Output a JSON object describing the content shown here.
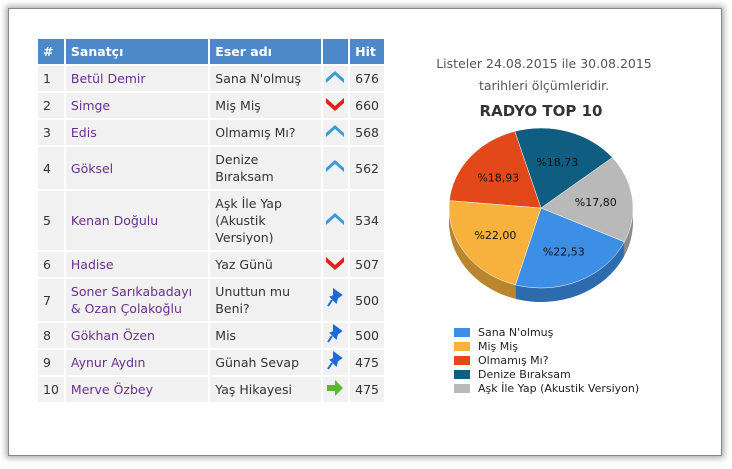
{
  "table": {
    "header": [
      "#",
      "Sanatçı",
      "Eser adı",
      "Hit"
    ],
    "rows": [
      [
        "1",
        "Betül Demir",
        "Sana N'olmuş",
        "676"
      ],
      [
        "2",
        "Simge",
        "Miş Miş",
        "660"
      ],
      [
        "3",
        "Edis",
        "Olmamış Mı?",
        "568"
      ],
      [
        "4",
        "Göksel",
        "Denize Bıraksam",
        "562"
      ],
      [
        "5",
        "Kenan Doğulu",
        "Aşk İle Yap (Akustik Versiyon)",
        "534"
      ],
      [
        "6",
        "Hadise",
        "Yaz Günü",
        "507"
      ],
      [
        "7",
        "Soner Sarıkabadayı & Ozan Çolakoğlu",
        "Unuttun mu Beni?",
        "500"
      ],
      [
        "8",
        "Gökhan Özen",
        "Mis",
        "500"
      ],
      [
        "9",
        "Aynur Aydın",
        "Günah Sevap",
        "475"
      ],
      [
        "10",
        "Merve Özbey",
        "Yaş Hikayesi",
        "475"
      ]
    ]
  },
  "note": "Listeler 24.08.2015 ile 30.08.2015 tarihleri ölçümleridir.",
  "chart_data": {
    "type": "pie",
    "title": "RADYO TOP 10",
    "categories": [
      "Sana N'olmuş",
      "Miş Miş",
      "Olmamış Mı?",
      "Denize Bıraksam",
      "Aşk İle Yap (Akustik Versiyon)"
    ],
    "values": [
      22.53,
      22.0,
      18.93,
      18.73,
      17.8
    ],
    "value_labels": [
      "%22,53",
      "%22,00",
      "%18,93",
      "%18,73",
      "%17,80"
    ],
    "colors": [
      "#3d8fe6",
      "#f7b23e",
      "#e2481a",
      "#0f5d80",
      "#b9b9b9"
    ],
    "legend": "bottom"
  }
}
